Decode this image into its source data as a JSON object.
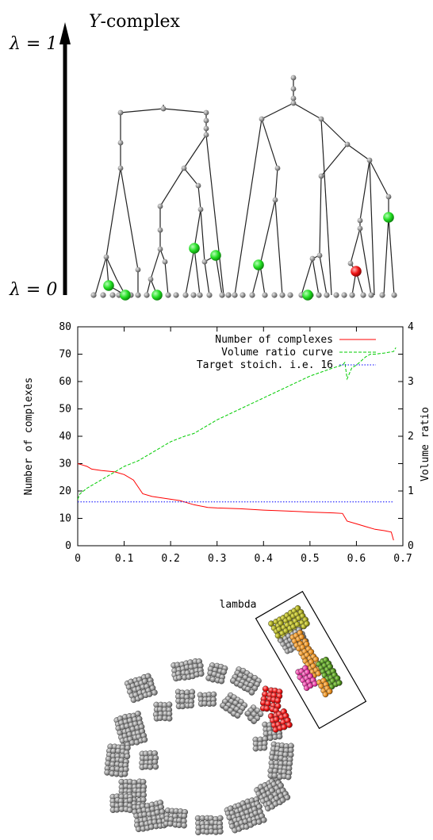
{
  "tree": {
    "title": "Y-complex",
    "top_label": "λ = 1",
    "bottom_label": "λ = 0",
    "colors": {
      "node": "#8a8a8a",
      "highlight": "#22dd22",
      "selected": "#ee1111",
      "edge": "#222222"
    }
  },
  "chart_data": {
    "type": "line",
    "x": [
      0,
      0.01,
      0.02,
      0.03,
      0.05,
      0.08,
      0.1,
      0.12,
      0.14,
      0.16,
      0.2,
      0.22,
      0.23,
      0.25,
      0.28,
      0.3,
      0.35,
      0.4,
      0.45,
      0.5,
      0.55,
      0.57,
      0.58,
      0.6,
      0.62,
      0.64,
      0.66,
      0.675,
      0.68
    ],
    "series": [
      {
        "name": "Number of complexes",
        "axis": "left",
        "color": "#ff0000",
        "style": "solid",
        "x": [
          0,
          0.01,
          0.02,
          0.03,
          0.05,
          0.08,
          0.1,
          0.12,
          0.14,
          0.16,
          0.2,
          0.22,
          0.23,
          0.25,
          0.28,
          0.3,
          0.35,
          0.4,
          0.45,
          0.5,
          0.55,
          0.57,
          0.58,
          0.6,
          0.62,
          0.64,
          0.66,
          0.675,
          0.68
        ],
        "values": [
          30,
          29.5,
          29,
          28,
          27.5,
          27,
          26,
          24,
          19,
          18,
          17,
          16.5,
          16,
          15,
          14,
          13.8,
          13.5,
          13,
          12.7,
          12.3,
          12,
          11.8,
          9,
          8,
          7,
          6,
          5.5,
          5,
          2
        ]
      },
      {
        "name": "Volume ratio curve",
        "axis": "right",
        "color": "#00cc00",
        "style": "dashed",
        "x": [
          0,
          0.005,
          0.02,
          0.05,
          0.08,
          0.1,
          0.13,
          0.15,
          0.2,
          0.23,
          0.25,
          0.3,
          0.35,
          0.4,
          0.45,
          0.5,
          0.55,
          0.57,
          0.575,
          0.58,
          0.59,
          0.6,
          0.62,
          0.63,
          0.64,
          0.66,
          0.68,
          0.685
        ],
        "values": [
          0.85,
          0.95,
          1.05,
          1.2,
          1.35,
          1.45,
          1.55,
          1.65,
          1.9,
          2.0,
          2.05,
          2.3,
          2.5,
          2.7,
          2.9,
          3.1,
          3.25,
          3.3,
          3.35,
          3.05,
          3.25,
          3.3,
          3.45,
          3.5,
          3.5,
          3.52,
          3.55,
          3.62
        ]
      },
      {
        "name": "Target stoich. i.e. 16",
        "axis": "left",
        "color": "#0000ff",
        "style": "dotted",
        "x": [
          0,
          0.68
        ],
        "values": [
          16,
          16
        ]
      }
    ],
    "xlabel": "lambda",
    "ylabel": "Number of complexes",
    "y2label": "Volume ratio",
    "xlim": [
      0,
      0.7
    ],
    "ylim": [
      0,
      80
    ],
    "y2lim": [
      0,
      4
    ],
    "xticks": [
      "0",
      "0.1",
      "0.2",
      "0.3",
      "0.4",
      "0.5",
      "0.6",
      "0.7"
    ],
    "yticks": [
      "0",
      "10",
      "20",
      "30",
      "40",
      "50",
      "60",
      "70",
      "80"
    ],
    "y2ticks": [
      "0",
      "1",
      "2",
      "3",
      "4"
    ],
    "legend": "top-right",
    "grid": false
  },
  "render": {
    "colors": {
      "grey": "#8e8e8e",
      "red": "#ee1111",
      "olive": "#9a9a1c",
      "orange": "#e38a1a",
      "magenta": "#e0309a",
      "green": "#4a8a1a"
    }
  }
}
